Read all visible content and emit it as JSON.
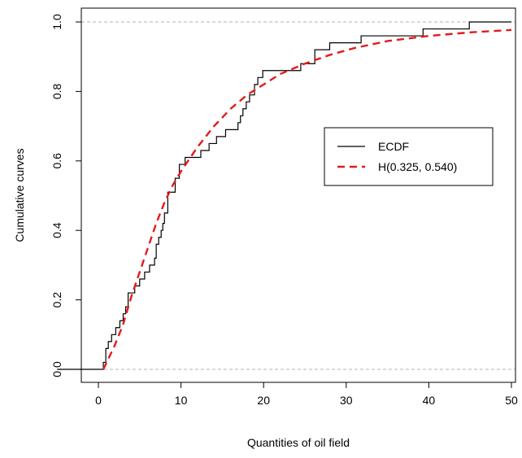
{
  "chart_data": {
    "type": "line",
    "title": "",
    "xlabel": "Quantities of oil field",
    "ylabel": "Cumulative curves",
    "xlim": [
      -5,
      50
    ],
    "ylim": [
      0,
      1
    ],
    "x_ticks": [
      0,
      10,
      20,
      30,
      40,
      50
    ],
    "y_ticks": [
      0.0,
      0.2,
      0.4,
      0.6,
      0.8,
      1.0
    ],
    "x_tick_labels": [
      "0",
      "10",
      "20",
      "30",
      "40",
      "50"
    ],
    "y_tick_labels": [
      "0.0",
      "0.2",
      "0.4",
      "0.6",
      "0.8",
      "1.0"
    ],
    "reference_lines": [
      0,
      1
    ],
    "legend_position": "right",
    "series": [
      {
        "name": "ECDF",
        "style": "step",
        "color": "#000000",
        "x": [
          0.6,
          0.9,
          1.2,
          1.6,
          2.1,
          2.6,
          3.0,
          3.3,
          3.6,
          4.4,
          5.0,
          5.6,
          6.2,
          6.8,
          7.0,
          7.3,
          7.6,
          7.8,
          8.0,
          8.4,
          9.3,
          9.8,
          10.5,
          12.4,
          13.4,
          14.3,
          15.4,
          16.9,
          17.2,
          17.5,
          17.9,
          18.3,
          18.9,
          19.3,
          19.9,
          21.3,
          24.5,
          26.2,
          28.0,
          31.8,
          39.3,
          44.9
        ],
        "y": [
          0.02,
          0.06,
          0.08,
          0.1,
          0.12,
          0.14,
          0.16,
          0.18,
          0.22,
          0.24,
          0.26,
          0.28,
          0.3,
          0.32,
          0.36,
          0.38,
          0.4,
          0.42,
          0.45,
          0.51,
          0.55,
          0.59,
          0.61,
          0.63,
          0.65,
          0.67,
          0.69,
          0.71,
          0.73,
          0.75,
          0.77,
          0.79,
          0.82,
          0.84,
          0.86,
          0.86,
          0.88,
          0.92,
          0.94,
          0.96,
          0.98,
          1.0
        ],
        "x_start": -5,
        "x_end": 50
      },
      {
        "name": "H(0.325, 0.540)",
        "style": "dashed",
        "color": "#e31a1c",
        "x": [
          0.6,
          2,
          3,
          4,
          5,
          6,
          7,
          8,
          9,
          10,
          12,
          14,
          16,
          18,
          20,
          22,
          25,
          28,
          31,
          35,
          40,
          45,
          50
        ],
        "y": [
          0.0,
          0.07,
          0.13,
          0.21,
          0.28,
          0.35,
          0.42,
          0.48,
          0.53,
          0.57,
          0.64,
          0.7,
          0.75,
          0.79,
          0.82,
          0.85,
          0.88,
          0.905,
          0.925,
          0.945,
          0.96,
          0.97,
          0.977
        ]
      }
    ]
  }
}
